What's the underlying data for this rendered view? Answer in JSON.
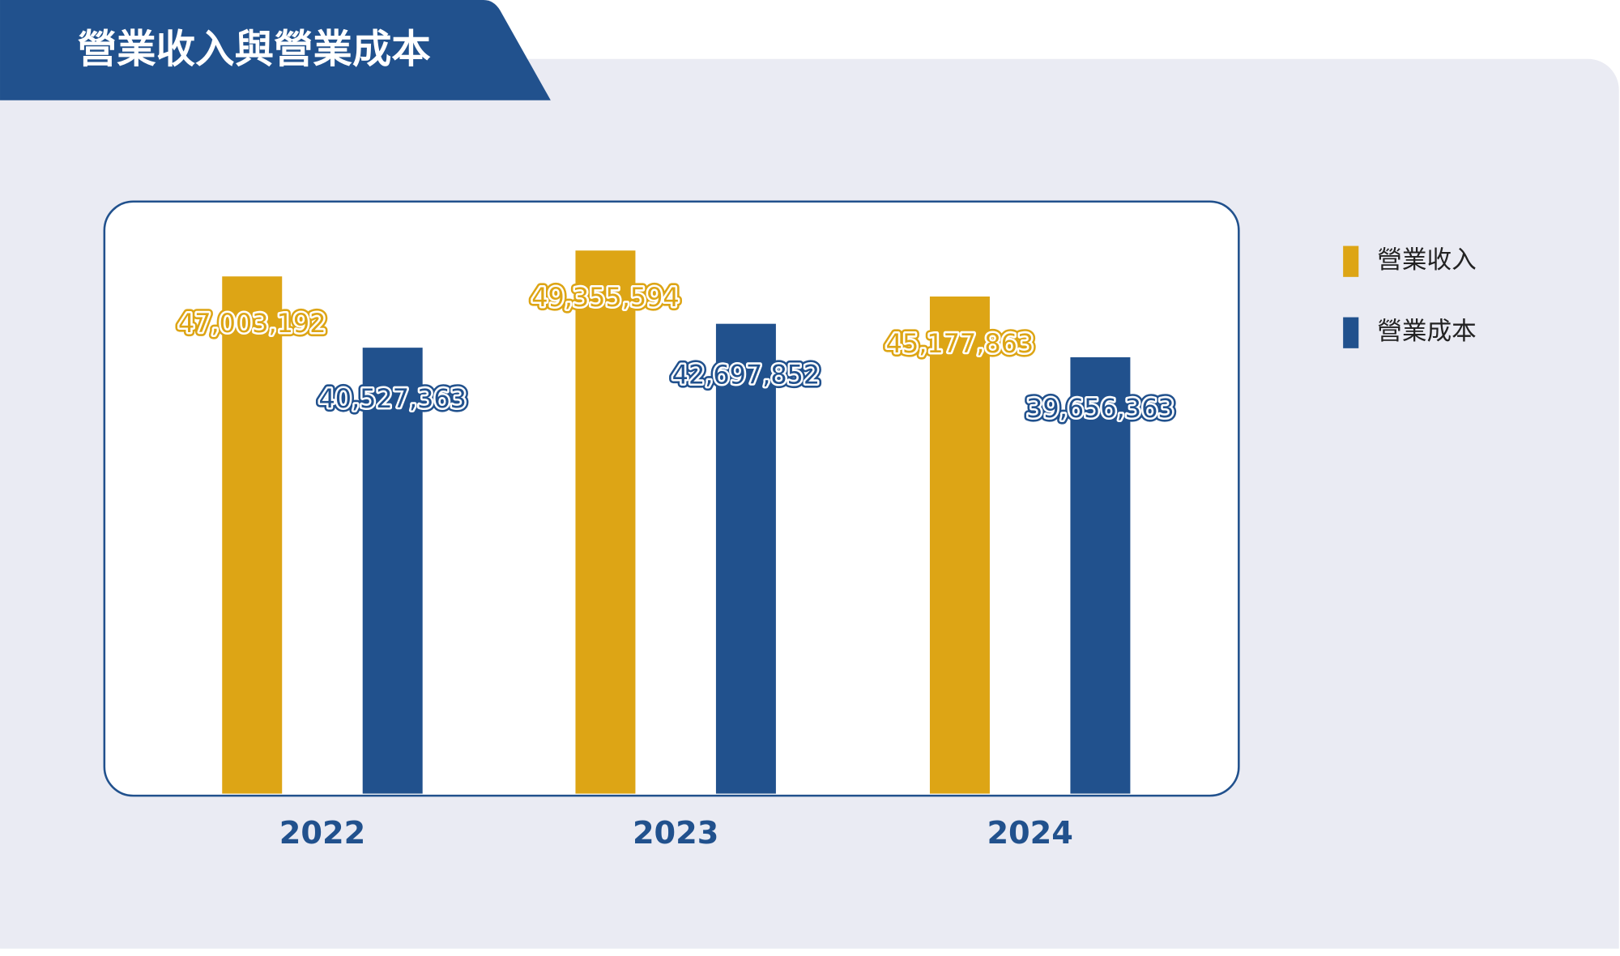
{
  "chart_data": {
    "type": "bar",
    "title": "營業收入與營業成本",
    "categories": [
      "2022",
      "2023",
      "2024"
    ],
    "series": [
      {
        "name": "營業收入",
        "color": "#dda515",
        "values": [
          47003192,
          49355594,
          45177863
        ],
        "value_labels": [
          "47,003,192",
          "49,355,594",
          "45,177,863"
        ]
      },
      {
        "name": "營業成本",
        "color": "#21518d",
        "values": [
          40527363,
          42697852,
          39656363
        ],
        "value_labels": [
          "40,527,363",
          "42,697,852",
          "39,656,363"
        ]
      }
    ],
    "ylim": [
      0,
      54000000
    ],
    "legend": "right"
  }
}
